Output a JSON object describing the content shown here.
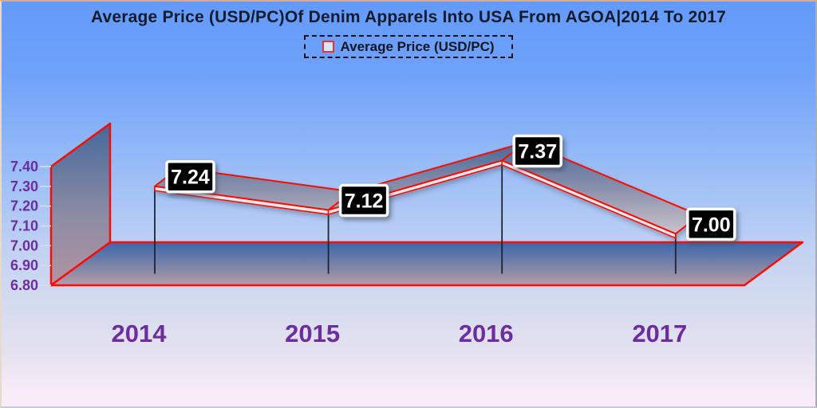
{
  "chart_data": {
    "type": "line",
    "style": "3d-ribbon",
    "title": "Average Price (USD/PC)Of Denim Apparels Into USA From AGOA|2014 To 2017",
    "legend": {
      "label": "Average Price (USD/PC)",
      "position": "top"
    },
    "categories": [
      "2014",
      "2015",
      "2016",
      "2017"
    ],
    "series": [
      {
        "name": "Average Price (USD/PC)",
        "values": [
          7.24,
          7.12,
          7.37,
          7.0
        ]
      }
    ],
    "point_labels": [
      "7.24",
      "7.12",
      "7.37",
      "7.00"
    ],
    "xlabel": "",
    "ylabel": "",
    "ylim": [
      6.8,
      7.4
    ],
    "yticks": [
      "7.40",
      "7.30",
      "7.20",
      "7.10",
      "7.00",
      "6.90",
      "6.80"
    ],
    "grid": false,
    "colors": {
      "edge_red": "#F70D05",
      "label_box_bg": "#000000",
      "label_box_border": "#FFFFFF",
      "label_text": "#FFFFFF",
      "axis_text_purple": "#6C2E9E",
      "title_text": "#121C2C",
      "legend_marker_red": "#E0392B",
      "drop_line": "#1C2530",
      "bg_top": "#639AFA",
      "bg_bottom": "#FAEDF8",
      "wall_top": "#46689B",
      "wall_bottom": "#B294A0",
      "floor_top": "#3C67AD",
      "floor_bottom": "#B59CA8"
    }
  }
}
